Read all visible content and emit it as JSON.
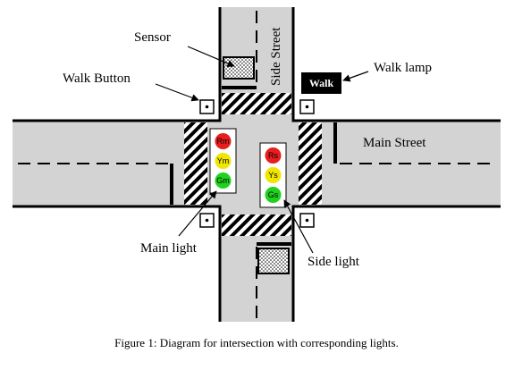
{
  "labels": {
    "sensor": "Sensor",
    "side_street": "Side Street",
    "walk_button": "Walk Button",
    "walk_lamp": "Walk lamp",
    "walk_lamp_text": "Walk",
    "main_street": "Main Street",
    "main_light": "Main light",
    "side_light": "Side light"
  },
  "main_light": {
    "red": "Rm",
    "yellow": "Ym",
    "green": "Gm"
  },
  "side_light": {
    "red": "Rs",
    "yellow": "Ys",
    "green": "Gs"
  },
  "caption": "Figure 1: Diagram for intersection with corresponding lights.",
  "colors": {
    "road": "#d3d3d3",
    "red": "#e81e1e",
    "yellow": "#f0e600",
    "green": "#1ed21e",
    "walk_lamp_bg": "#000000",
    "walk_lamp_fg": "#ffffff"
  }
}
